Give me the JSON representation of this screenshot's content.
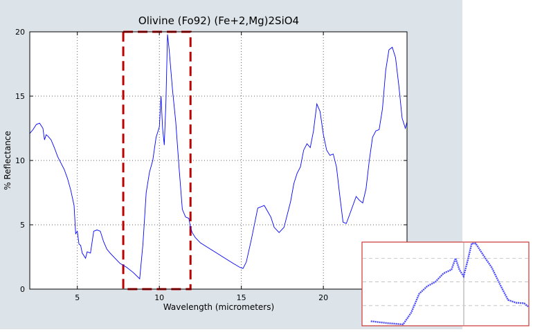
{
  "chart_data": {
    "type": "line",
    "title": "Olivine (Fo92) (Fe+2,Mg)2SiO4",
    "xlabel": "Wavelength (micrometers)",
    "ylabel": "% Reflectance",
    "xlim": [
      2.1,
      25.1
    ],
    "ylim": [
      0,
      20
    ],
    "xticks": [
      5,
      10,
      15,
      20
    ],
    "yticks": [
      0,
      5,
      10,
      15,
      20
    ],
    "grid": true,
    "series": [
      {
        "color": "#0000ff",
        "x": [
          2.1,
          2.3,
          2.5,
          2.7,
          2.9,
          3.0,
          3.1,
          3.2,
          3.4,
          3.6,
          3.8,
          4.0,
          4.2,
          4.4,
          4.6,
          4.8,
          4.9,
          5.0,
          5.1,
          5.2,
          5.3,
          5.5,
          5.6,
          5.8,
          6.0,
          6.2,
          6.4,
          6.6,
          6.8,
          7.0,
          7.3,
          7.6,
          8.0,
          8.4,
          8.8,
          9.0,
          9.2,
          9.4,
          9.6,
          9.8,
          10.0,
          10.1,
          10.2,
          10.3,
          10.4,
          10.5,
          10.6,
          10.8,
          11.0,
          11.2,
          11.4,
          11.6,
          11.8,
          11.9,
          12.0,
          12.2,
          12.5,
          13.0,
          13.5,
          14.0,
          14.5,
          14.9,
          15.1,
          15.3,
          15.6,
          16.0,
          16.4,
          16.8,
          17.0,
          17.3,
          17.6,
          18.0,
          18.2,
          18.4,
          18.6,
          18.8,
          19.0,
          19.2,
          19.4,
          19.6,
          19.8,
          20.0,
          20.2,
          20.4,
          20.6,
          20.8,
          21.0,
          21.2,
          21.4,
          21.6,
          21.8,
          22.0,
          22.2,
          22.4,
          22.6,
          22.8,
          23.0,
          23.2,
          23.4,
          23.6,
          23.8,
          24.0,
          24.2,
          24.4,
          24.6,
          24.8,
          25.0,
          25.1
        ],
        "y": [
          12.1,
          12.4,
          12.8,
          12.9,
          12.5,
          11.6,
          12.0,
          11.9,
          11.6,
          11.0,
          10.3,
          9.8,
          9.3,
          8.6,
          7.7,
          6.5,
          4.3,
          4.5,
          3.5,
          3.4,
          2.8,
          2.4,
          2.9,
          2.8,
          4.5,
          4.6,
          4.5,
          3.7,
          3.1,
          2.8,
          2.4,
          2.0,
          1.7,
          1.3,
          0.8,
          3.5,
          7.5,
          9.1,
          10.0,
          11.8,
          12.6,
          15.0,
          12.5,
          11.2,
          14.5,
          19.8,
          18.6,
          15.5,
          13.0,
          9.5,
          6.2,
          5.6,
          5.5,
          4.8,
          4.4,
          4.0,
          3.6,
          3.2,
          2.8,
          2.4,
          2.0,
          1.7,
          1.6,
          2.1,
          3.8,
          6.3,
          6.5,
          5.6,
          4.8,
          4.4,
          4.8,
          6.8,
          8.2,
          9.0,
          9.5,
          10.8,
          11.3,
          11.0,
          12.3,
          14.4,
          13.8,
          12.0,
          10.8,
          10.4,
          10.5,
          9.5,
          7.3,
          5.2,
          5.1,
          5.8,
          6.5,
          7.2,
          6.9,
          6.7,
          7.8,
          10.0,
          11.8,
          12.3,
          12.4,
          14.0,
          17.0,
          18.6,
          18.8,
          18.0,
          15.8,
          13.3,
          12.5,
          13.0
        ]
      }
    ],
    "annotations": [
      {
        "type": "dashed-rectangle",
        "color": "#bb0000",
        "x_range": [
          7.8,
          11.9
        ],
        "y_range": [
          0,
          20
        ]
      }
    ],
    "inset": {
      "description": "zoomed view of the marked region",
      "border_color": "#cc3333"
    }
  }
}
